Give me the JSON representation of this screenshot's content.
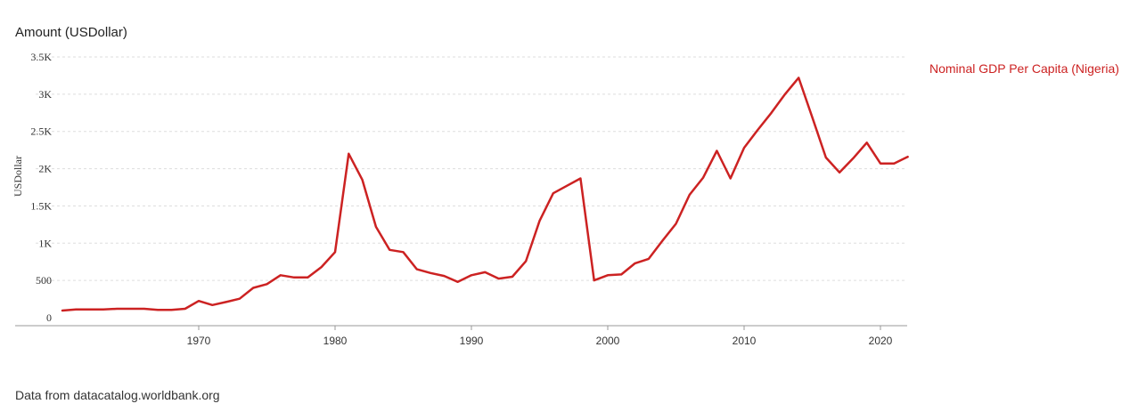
{
  "chart_data": {
    "type": "line",
    "title": "Amount (USDollar)",
    "ylabel": "USDollar",
    "xlabel": "",
    "ylim": [
      0,
      3500
    ],
    "xlim": [
      1960,
      2022
    ],
    "yticks": [
      {
        "value": 0,
        "label": "0"
      },
      {
        "value": 500,
        "label": "500"
      },
      {
        "value": 1000,
        "label": "1K"
      },
      {
        "value": 1500,
        "label": "1.5K"
      },
      {
        "value": 2000,
        "label": "2K"
      },
      {
        "value": 2500,
        "label": "2.5K"
      },
      {
        "value": 3000,
        "label": "3K"
      },
      {
        "value": 3500,
        "label": "3.5K"
      }
    ],
    "xticks": [
      {
        "value": 1970,
        "label": "1970"
      },
      {
        "value": 1980,
        "label": "1980"
      },
      {
        "value": 1990,
        "label": "1990"
      },
      {
        "value": 2000,
        "label": "2000"
      },
      {
        "value": 2010,
        "label": "2010"
      },
      {
        "value": 2020,
        "label": "2020"
      }
    ],
    "grid": true,
    "legend_position": "top-right",
    "series": [
      {
        "name": "Nominal GDP Per Capita (Nigeria)",
        "color": "#cc2222",
        "x": [
          1960,
          1961,
          1962,
          1963,
          1964,
          1965,
          1966,
          1967,
          1968,
          1969,
          1970,
          1971,
          1972,
          1973,
          1974,
          1975,
          1976,
          1977,
          1978,
          1979,
          1980,
          1981,
          1982,
          1983,
          1984,
          1985,
          1986,
          1987,
          1988,
          1989,
          1990,
          1991,
          1992,
          1993,
          1994,
          1995,
          1996,
          1997,
          1998,
          1999,
          2000,
          2001,
          2002,
          2003,
          2004,
          2005,
          2006,
          2007,
          2008,
          2009,
          2010,
          2011,
          2012,
          2013,
          2014,
          2015,
          2016,
          2017,
          2018,
          2019,
          2020,
          2021,
          2022
        ],
        "values": [
          95,
          110,
          110,
          110,
          120,
          120,
          120,
          105,
          105,
          120,
          225,
          170,
          210,
          255,
          400,
          450,
          570,
          540,
          540,
          680,
          880,
          2200,
          1850,
          1220,
          910,
          880,
          650,
          600,
          560,
          480,
          570,
          610,
          525,
          550,
          760,
          1300,
          1670,
          1770,
          1870,
          500,
          570,
          580,
          730,
          790,
          1030,
          1260,
          1650,
          1880,
          2240,
          1870,
          2280,
          2520,
          2750,
          3000,
          3220,
          2690,
          2150,
          1950,
          2140,
          2350,
          2070,
          2070,
          2160
        ]
      }
    ]
  },
  "footer": {
    "source_text": "Data from datacatalog.worldbank.org"
  }
}
